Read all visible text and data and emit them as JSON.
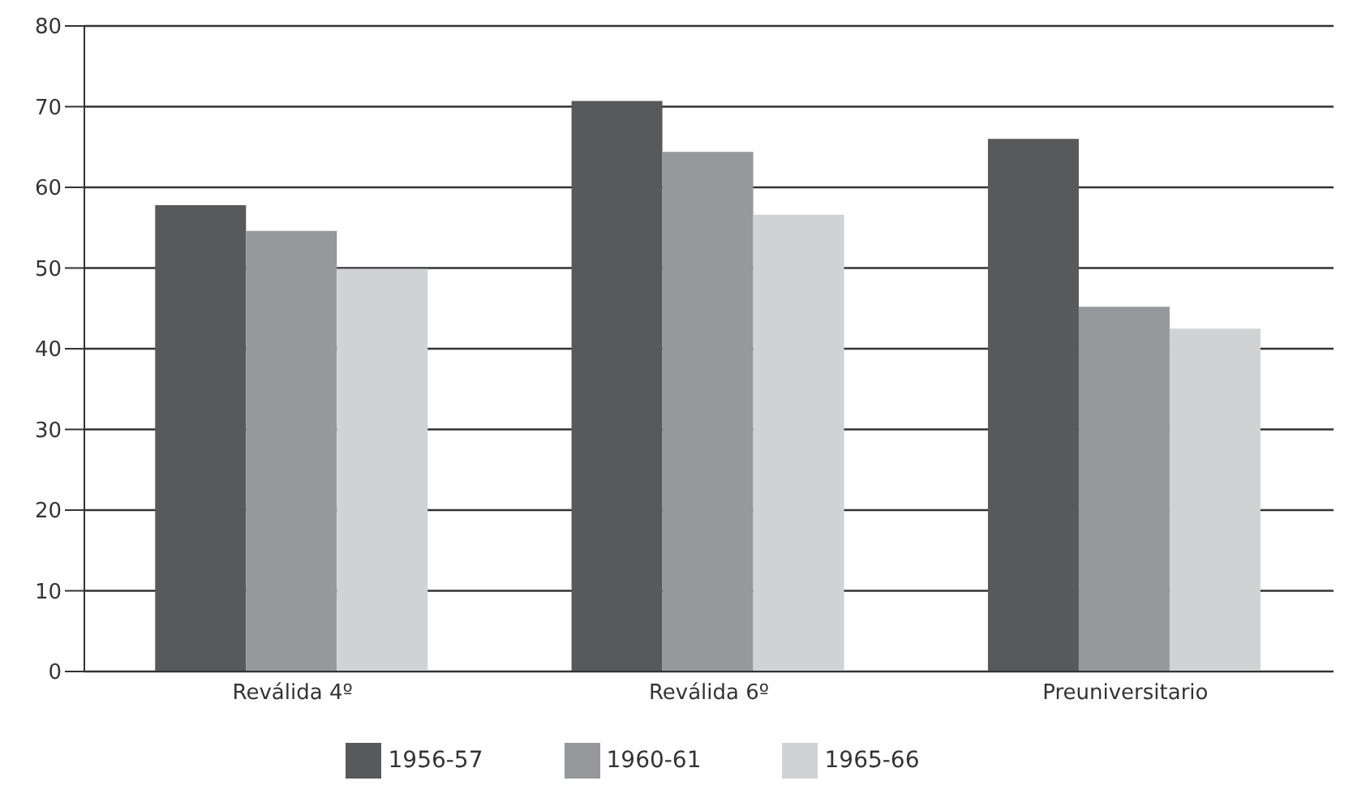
{
  "chart_data": {
    "type": "bar",
    "categories": [
      "Reválida 4º",
      "Reválida 6º",
      "Preuniversitario"
    ],
    "series": [
      {
        "name": "1956-57",
        "color": "#58595b",
        "values": [
          57.8,
          70.7,
          66.0
        ]
      },
      {
        "name": "1960-61",
        "color": "#97989b",
        "values": [
          54.6,
          64.4,
          45.2
        ]
      },
      {
        "name": "1965-66",
        "color": "#d1d2d4",
        "values": [
          49.9,
          56.6,
          42.5
        ]
      }
    ],
    "ylim": [
      0,
      80
    ],
    "yticks": [
      0,
      10,
      20,
      30,
      40,
      50,
      60,
      70,
      80
    ],
    "grid": "y",
    "legend": "bottom"
  }
}
